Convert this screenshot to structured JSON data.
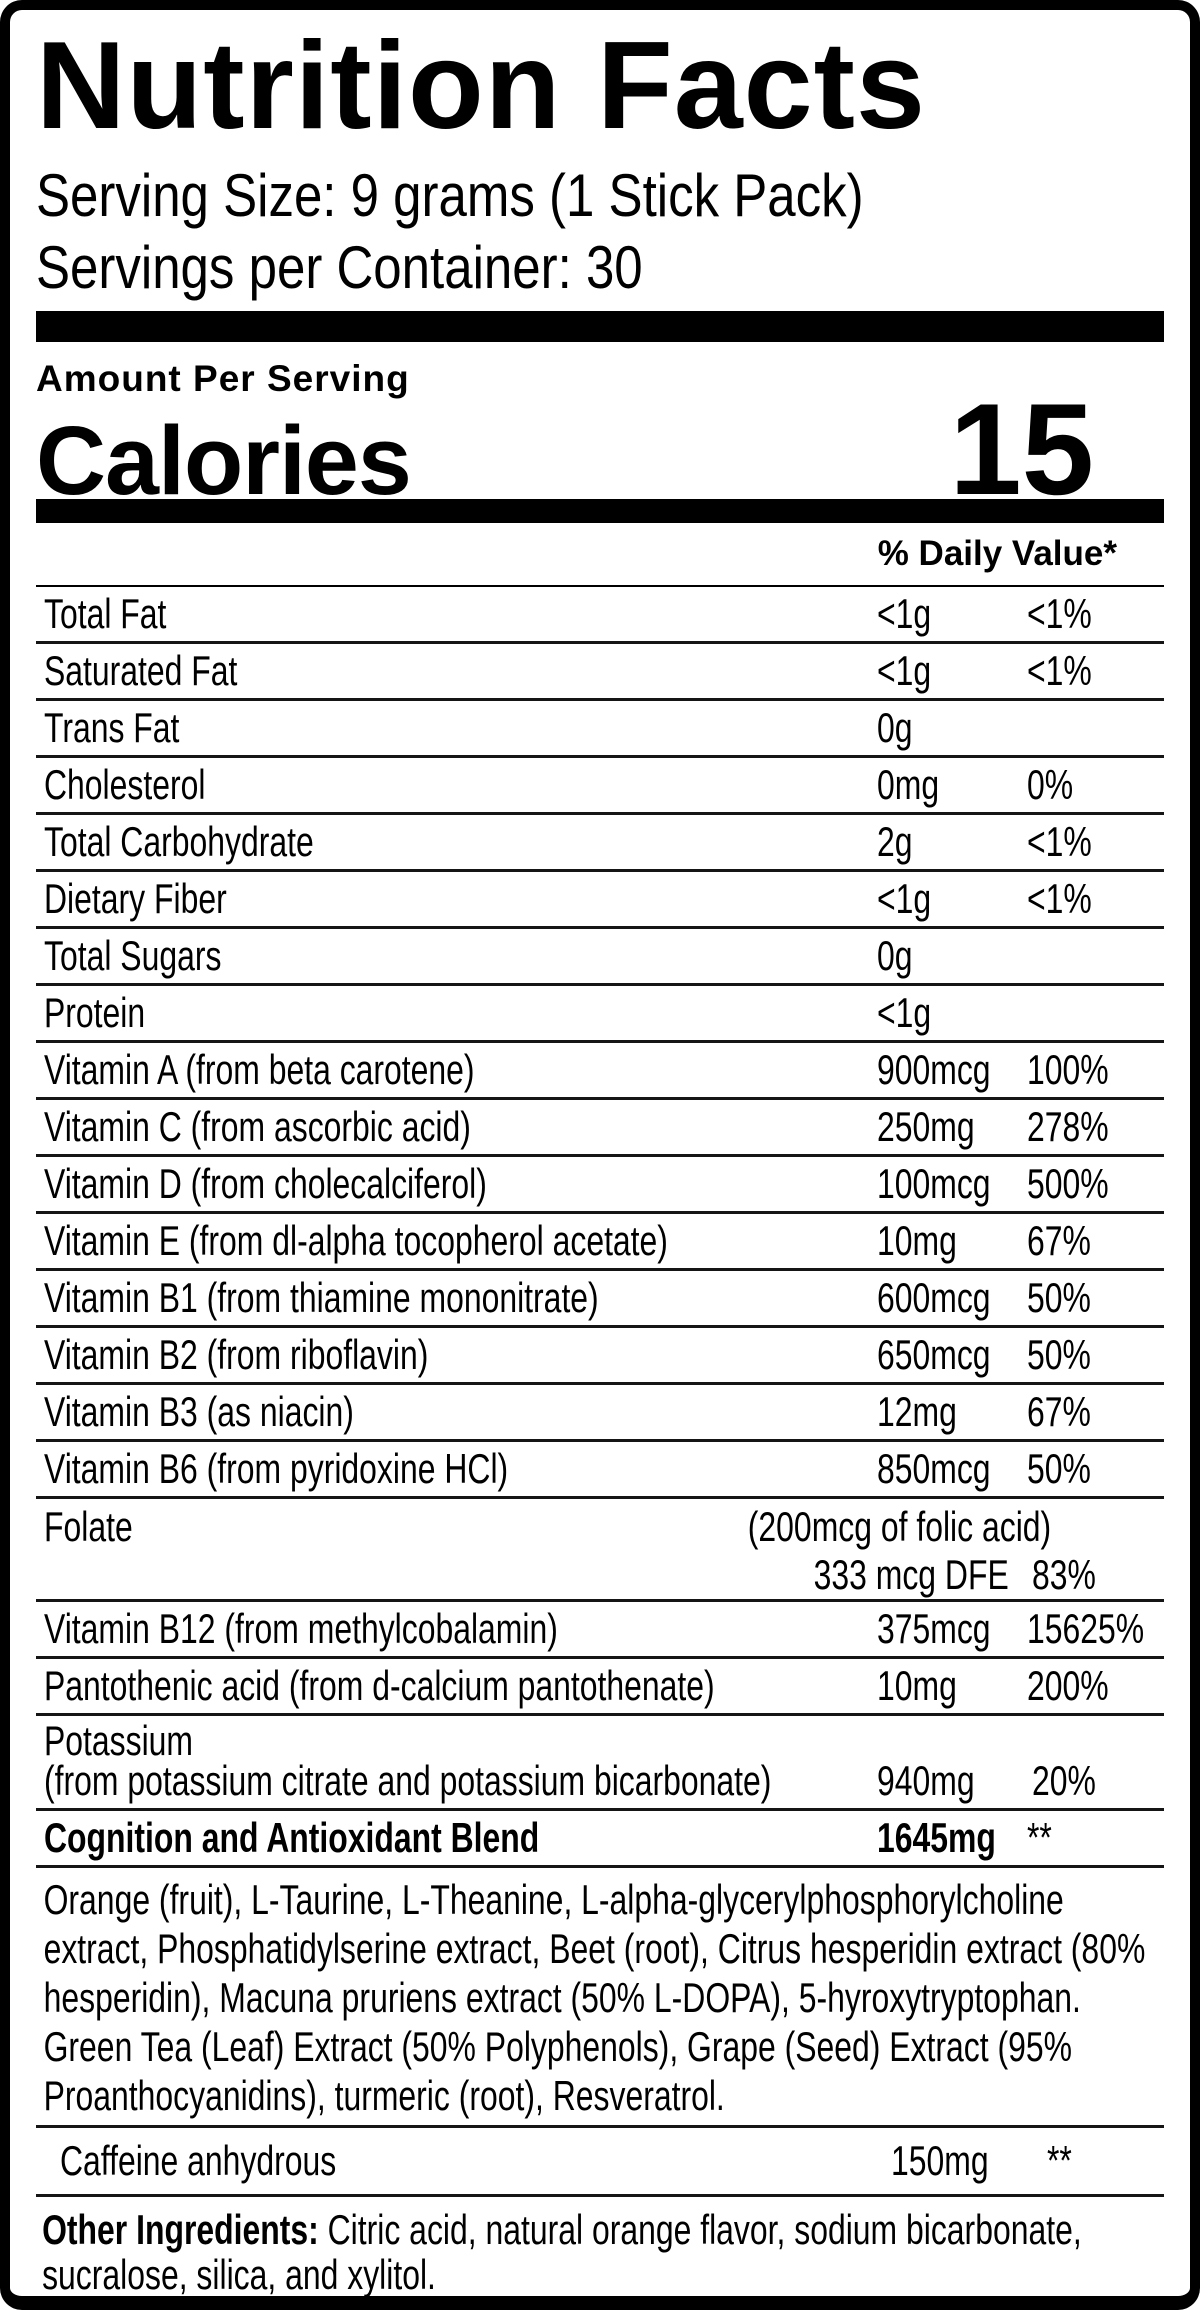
{
  "header": {
    "title": "Nutrition Facts",
    "serving_size": "Serving Size: 9 grams (1 Stick Pack)",
    "servings_per_container": "Servings per Container: 30"
  },
  "calories": {
    "section_label": "Amount Per Serving",
    "label": "Calories",
    "value": "15"
  },
  "daily_value_header": "% Daily Value*",
  "nutrient_rows": [
    {
      "label": "Total Fat",
      "amount": "<1g",
      "dv": "<1%"
    },
    {
      "label": "Saturated Fat",
      "amount": "<1g",
      "dv": "<1%"
    },
    {
      "label": "Trans Fat",
      "amount": "0g",
      "dv": ""
    },
    {
      "label": "Cholesterol",
      "amount": "0mg",
      "dv": "0%"
    },
    {
      "label": "Total Carbohydrate",
      "amount": "2g",
      "dv": "<1%"
    },
    {
      "label": "Dietary Fiber",
      "amount": "<1g",
      "dv": "<1%"
    },
    {
      "label": "Total Sugars",
      "amount": "0g",
      "dv": ""
    },
    {
      "label": "Protein",
      "amount": "<1g",
      "dv": ""
    },
    {
      "label": "Vitamin A (from beta carotene)",
      "amount": "900mcg",
      "dv": "100%"
    },
    {
      "label": "Vitamin C (from ascorbic acid)",
      "amount": "250mg",
      "dv": "278%"
    },
    {
      "label": "Vitamin D (from cholecalciferol)",
      "amount": "100mcg",
      "dv": "500%"
    },
    {
      "label": "Vitamin E (from dl-alpha tocopherol acetate)",
      "amount": "10mg",
      "dv": "67%"
    },
    {
      "label": "Vitamin B1 (from thiamine mononitrate)",
      "amount": "600mcg",
      "dv": "50%"
    },
    {
      "label": "Vitamin B2 (from riboflavin)",
      "amount": "650mcg",
      "dv": "50%"
    },
    {
      "label": "Vitamin B3 (as niacin)",
      "amount": "12mg",
      "dv": "67%"
    },
    {
      "label": "Vitamin B6 (from pyridoxine HCl)",
      "amount": "850mcg",
      "dv": "50%"
    }
  ],
  "folate_row": {
    "label": "Folate",
    "note": "(200mcg of folic acid)",
    "amount": "333 mcg DFE",
    "dv": "83%"
  },
  "nutrient_rows_2": [
    {
      "label": "Vitamin B12 (from methylcobalamin)",
      "amount": "375mcg",
      "dv": "15625%"
    },
    {
      "label": "Pantothenic acid (from d-calcium pantothenate)",
      "amount": "10mg",
      "dv": "200%"
    }
  ],
  "potassium_row": {
    "label": "Potassium",
    "sublabel": "(from potassium citrate and potassium bicarbonate)",
    "amount": "940mg",
    "dv": "20%"
  },
  "blend_row": {
    "label": "Cognition and Antioxidant Blend",
    "amount": "1645mg",
    "dv": "**"
  },
  "blend_ingredients": "Orange (fruit), L-Taurine, L-Theanine, L-alpha-glycerylphosphorylcholine extract, Phosphatidylserine extract, Beet (root), Citrus hesperidin extract (80% hesperidin), Macuna pruriens extract (50% L-DOPA), 5-hyroxytryptophan. Green Tea (Leaf) Extract (50% Polyphenols), Grape (Seed) Extract (95% Proanthocyanidins), turmeric (root), Resveratrol.",
  "caffeine_row": {
    "label": "Caffeine anhydrous",
    "amount": "150mg",
    "dv": "**"
  },
  "other_ingredients": {
    "label": "Other Ingredients:",
    "text": "Citric acid, natural orange flavor, sodium bicarbonate, sucralose, silica, and xylitol."
  },
  "colors": {
    "ink": "#000000",
    "background": "#ffffff"
  }
}
